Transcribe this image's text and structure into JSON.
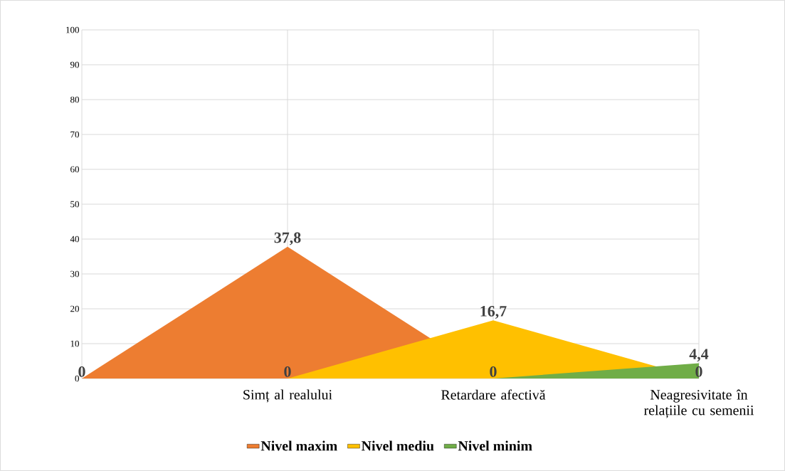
{
  "chart_data": {
    "type": "area",
    "categories": [
      null,
      "Simț al realului",
      "Retardare afectivă",
      "Neagresivitate în relațiile cu semenii"
    ],
    "series": [
      {
        "name": "Nivel maxim",
        "color": "#ed7d31",
        "values": [
          0,
          37.8,
          0,
          null
        ],
        "value_labels": [
          "0",
          "37,8",
          null,
          null
        ]
      },
      {
        "name": "Nivel mediu",
        "color": "#ffc000",
        "values": [
          null,
          0,
          16.7,
          0
        ],
        "value_labels": [
          null,
          "0",
          "16,7",
          "0"
        ]
      },
      {
        "name": "Nivel minim",
        "color": "#70ad47",
        "values": [
          null,
          null,
          0,
          4.4
        ],
        "value_labels": [
          null,
          null,
          "0",
          "4,4"
        ]
      }
    ],
    "ylim": [
      0,
      100
    ],
    "yticks": [
      0,
      10,
      20,
      30,
      40,
      50,
      60,
      70,
      80,
      90,
      100
    ],
    "grid": true,
    "legend": "bottom"
  }
}
